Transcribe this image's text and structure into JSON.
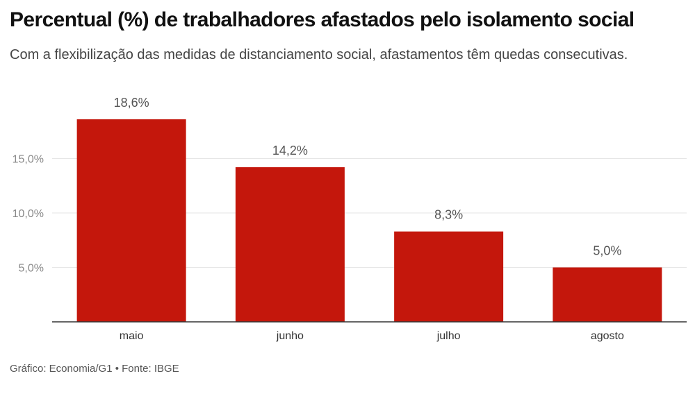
{
  "title": "Percentual (%) de trabalhadores afastados pelo isolamento social",
  "subtitle": "Com a flexibilização das medidas de distanciamento social, afastamentos têm quedas consecutivas.",
  "footer": "Gráfico: Economia/G1 • Fonte: IBGE",
  "colors": {
    "bar": "#c4170c",
    "grid": "#e6e6e6",
    "axis": "#333333",
    "tick": "#888888",
    "label": "#555555"
  },
  "chart_data": {
    "type": "bar",
    "categories": [
      "maio",
      "junho",
      "julho",
      "agosto"
    ],
    "values": [
      18.6,
      14.2,
      8.3,
      5.0
    ],
    "value_labels": [
      "18,6%",
      "14,2%",
      "8,3%",
      "5,0%"
    ],
    "yticks": [
      5,
      10,
      15
    ],
    "ytick_labels": [
      "5,0%",
      "10,0%",
      "15,0%"
    ],
    "ylim": [
      0,
      20
    ],
    "grid": true
  }
}
